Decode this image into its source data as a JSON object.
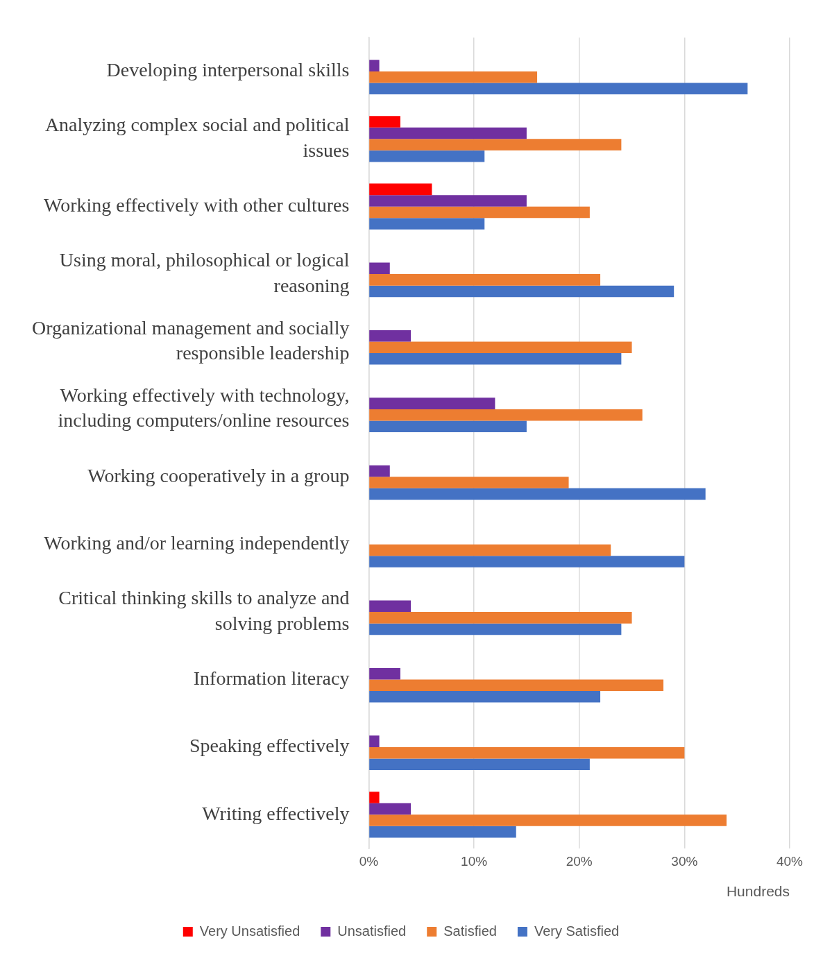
{
  "chart_data": {
    "type": "bar",
    "orientation": "horizontal",
    "xlabel": "Hundreds",
    "categories": [
      "Developing interpersonal skills",
      "Analyzing complex social and political issues",
      "Working effectively with other cultures",
      "Using moral, philosophical or logical reasoning",
      "Organizational management and socially responsible leadership",
      "Working effectively with technology, including computers/online resources",
      "Working cooperatively in a group",
      "Working and/or learning independently",
      "Critical thinking skills to analyze and solving problems",
      "Information literacy",
      "Speaking effectively",
      "Writing effectively"
    ],
    "series": [
      {
        "name": "Very Unsatisfied",
        "color": "#ff0000",
        "values": [
          null,
          3,
          6,
          null,
          null,
          null,
          null,
          null,
          null,
          null,
          null,
          1
        ]
      },
      {
        "name": "Unsatisfied",
        "color": "#7030a0",
        "values": [
          1,
          15,
          15,
          2,
          4,
          12,
          2,
          null,
          4,
          3,
          1,
          4
        ]
      },
      {
        "name": "Satisfied",
        "color": "#ed7d31",
        "values": [
          16,
          24,
          21,
          22,
          25,
          26,
          19,
          23,
          25,
          28,
          30,
          34
        ]
      },
      {
        "name": "Very Satisfied",
        "color": "#4472c4",
        "values": [
          36,
          11,
          11,
          29,
          24,
          15,
          32,
          30,
          24,
          22,
          21,
          14
        ]
      }
    ],
    "xlim": [
      0,
      40
    ],
    "xticks": [
      {
        "value": 0,
        "label": "0%"
      },
      {
        "value": 10,
        "label": "10%"
      },
      {
        "value": 20,
        "label": "20%"
      },
      {
        "value": 30,
        "label": "30%"
      },
      {
        "value": 40,
        "label": "40%"
      }
    ],
    "grid": "x",
    "legend": "bottom"
  }
}
